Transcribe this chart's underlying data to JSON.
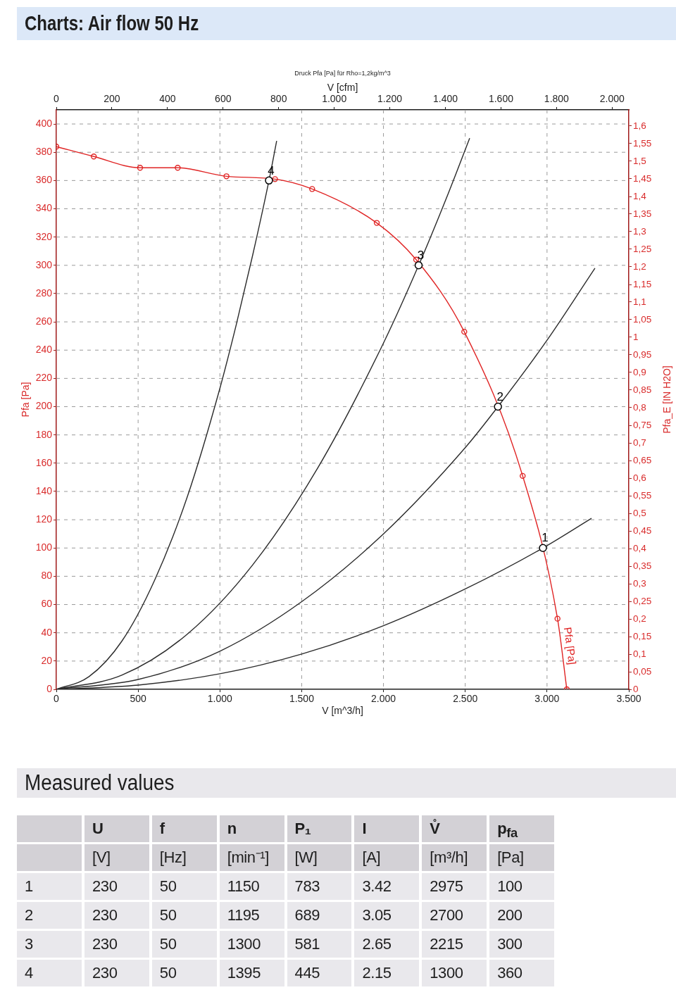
{
  "chart_data": [
    {
      "type": "line",
      "title": "Charts: Air flow 50 Hz",
      "subtitle": "Druck Pfa [Pa] für Rho=1,2kg/m^3",
      "xlabel": "V [m^3/h]",
      "x2label": "V [cfm]",
      "ylabel": "Pfa [Pa]",
      "y2label": "Pfa_E [IN H2O]",
      "xlim": [
        0,
        3500
      ],
      "xticks": [
        0,
        500,
        {
          "value": 1000,
          "label": "1.000"
        },
        {
          "value": 1500,
          "label": "1.500"
        },
        {
          "value": 2000,
          "label": "2.000"
        },
        {
          "value": 2500,
          "label": "2.500"
        },
        {
          "value": 3000,
          "label": "3.000"
        },
        {
          "value": 3500,
          "label": "3.500"
        }
      ],
      "x2lim": [
        0,
        2060
      ],
      "x2ticks": [
        0,
        200,
        400,
        600,
        800,
        {
          "value": 1000,
          "label": "1.000"
        },
        {
          "value": 1200,
          "label": "1.200"
        },
        {
          "value": 1400,
          "label": "1.400"
        },
        {
          "value": 1600,
          "label": "1.600"
        },
        {
          "value": 1800,
          "label": "1.800"
        },
        {
          "value": 2000,
          "label": "2.000"
        }
      ],
      "ylim": [
        0,
        410
      ],
      "yticks": [
        0,
        20,
        40,
        60,
        80,
        100,
        120,
        140,
        160,
        180,
        200,
        220,
        240,
        260,
        280,
        300,
        320,
        340,
        360,
        380,
        400
      ],
      "y2lim": [
        0,
        1.646
      ],
      "y2ticks": [
        0,
        {
          "value": 0.05,
          "label": "0,05"
        },
        {
          "value": 0.1,
          "label": "0,1"
        },
        {
          "value": 0.15,
          "label": "0,15"
        },
        {
          "value": 0.2,
          "label": "0,2"
        },
        {
          "value": 0.25,
          "label": "0,25"
        },
        {
          "value": 0.3,
          "label": "0,3"
        },
        {
          "value": 0.35,
          "label": "0,35"
        },
        {
          "value": 0.4,
          "label": "0,4"
        },
        {
          "value": 0.45,
          "label": "0,45"
        },
        {
          "value": 0.5,
          "label": "0,5"
        },
        {
          "value": 0.55,
          "label": "0,55"
        },
        {
          "value": 0.6,
          "label": "0,6"
        },
        {
          "value": 0.65,
          "label": "0,65"
        },
        {
          "value": 0.7,
          "label": "0,7"
        },
        {
          "value": 0.75,
          "label": "0,75"
        },
        {
          "value": 0.8,
          "label": "0,8"
        },
        {
          "value": 0.85,
          "label": "0,85"
        },
        {
          "value": 0.9,
          "label": "0,9"
        },
        {
          "value": 0.95,
          "label": "0,95"
        },
        1,
        {
          "value": 1.05,
          "label": "1,05"
        },
        {
          "value": 1.1,
          "label": "1,1"
        },
        {
          "value": 1.15,
          "label": "1,15"
        },
        {
          "value": 1.2,
          "label": "1,2"
        },
        {
          "value": 1.25,
          "label": "1,25"
        },
        {
          "value": 1.3,
          "label": "1,3"
        },
        {
          "value": 1.35,
          "label": "1,35"
        },
        {
          "value": 1.4,
          "label": "1,4"
        },
        {
          "value": 1.45,
          "label": "1,45"
        },
        {
          "value": 1.5,
          "label": "1,5"
        },
        {
          "value": 1.55,
          "label": "1,55"
        },
        {
          "value": 1.6,
          "label": "1,6"
        }
      ],
      "grid": true,
      "annotations": [
        {
          "text": "1",
          "x": 2975,
          "y": 100
        },
        {
          "text": "2",
          "x": 2700,
          "y": 200
        },
        {
          "text": "3",
          "x": 2215,
          "y": 300
        },
        {
          "text": "4",
          "x": 1300,
          "y": 360
        }
      ],
      "series": [
        {
          "name": "Pfa [Pa]",
          "type": "line",
          "color": "#e02424",
          "marker": "circle",
          "x": [
            0,
            229,
            512,
            742,
            1040,
            1337,
            1564,
            1959,
            2200,
            2494,
            2851,
            3064,
            3121
          ],
          "values": [
            384,
            377,
            369,
            369,
            363,
            361,
            354,
            330,
            304,
            253,
            151,
            50,
            0
          ]
        },
        {
          "type": "line",
          "color": "#2b2b2b",
          "marker": "none",
          "x": [
            0,
            200,
            400,
            600,
            800,
            1000,
            1100,
            1200,
            1300,
            1347
          ],
          "values": [
            0,
            9,
            34,
            77,
            136,
            213,
            258,
            307,
            360,
            388
          ]
        },
        {
          "type": "line",
          "color": "#2b2b2b",
          "marker": "none",
          "x": [
            0,
            400,
            800,
            1200,
            1600,
            2000,
            2215,
            2400,
            2527
          ],
          "values": [
            0,
            10,
            39,
            88,
            157,
            245,
            300,
            352,
            390
          ]
        },
        {
          "type": "line",
          "color": "#2b2b2b",
          "marker": "none",
          "x": [
            0,
            500,
            1000,
            1500,
            2000,
            2500,
            2700,
            3000,
            3293
          ],
          "values": [
            0,
            7,
            27,
            62,
            110,
            171,
            200,
            247,
            298
          ]
        },
        {
          "type": "line",
          "color": "#2b2b2b",
          "marker": "none",
          "x": [
            0,
            500,
            1000,
            1500,
            2000,
            2500,
            2975,
            3272
          ],
          "values": [
            0,
            3,
            11,
            25,
            45,
            71,
            100,
            121
          ]
        },
        {
          "type": "scatter",
          "color": "#000000",
          "marker": "circle",
          "x": [
            2975,
            2700,
            2215,
            1300
          ],
          "values": [
            100,
            200,
            300,
            360
          ]
        }
      ]
    },
    {
      "type": "heatmap",
      "title": "Measured values",
      "categories": [
        "U",
        "f",
        "n",
        "P₁",
        "I",
        "V̊",
        "p$_{fa}$"
      ],
      "annotations": [
        "[V]",
        "[Hz]",
        "[min⁻¹]",
        "[W]",
        "[A]",
        "[m³/h]",
        "[Pa]"
      ],
      "y_categories": [
        "1",
        "2",
        "3",
        "4"
      ],
      "data_labels": true,
      "cells": [
        [
          230,
          50,
          1150,
          783,
          3.42,
          2975,
          100
        ],
        [
          230,
          50,
          1195,
          689,
          3.05,
          2700,
          200
        ],
        [
          230,
          50,
          1300,
          581,
          2.65,
          2215,
          300
        ],
        [
          230,
          50,
          1395,
          445,
          2.15,
          1300,
          360
        ]
      ]
    }
  ]
}
